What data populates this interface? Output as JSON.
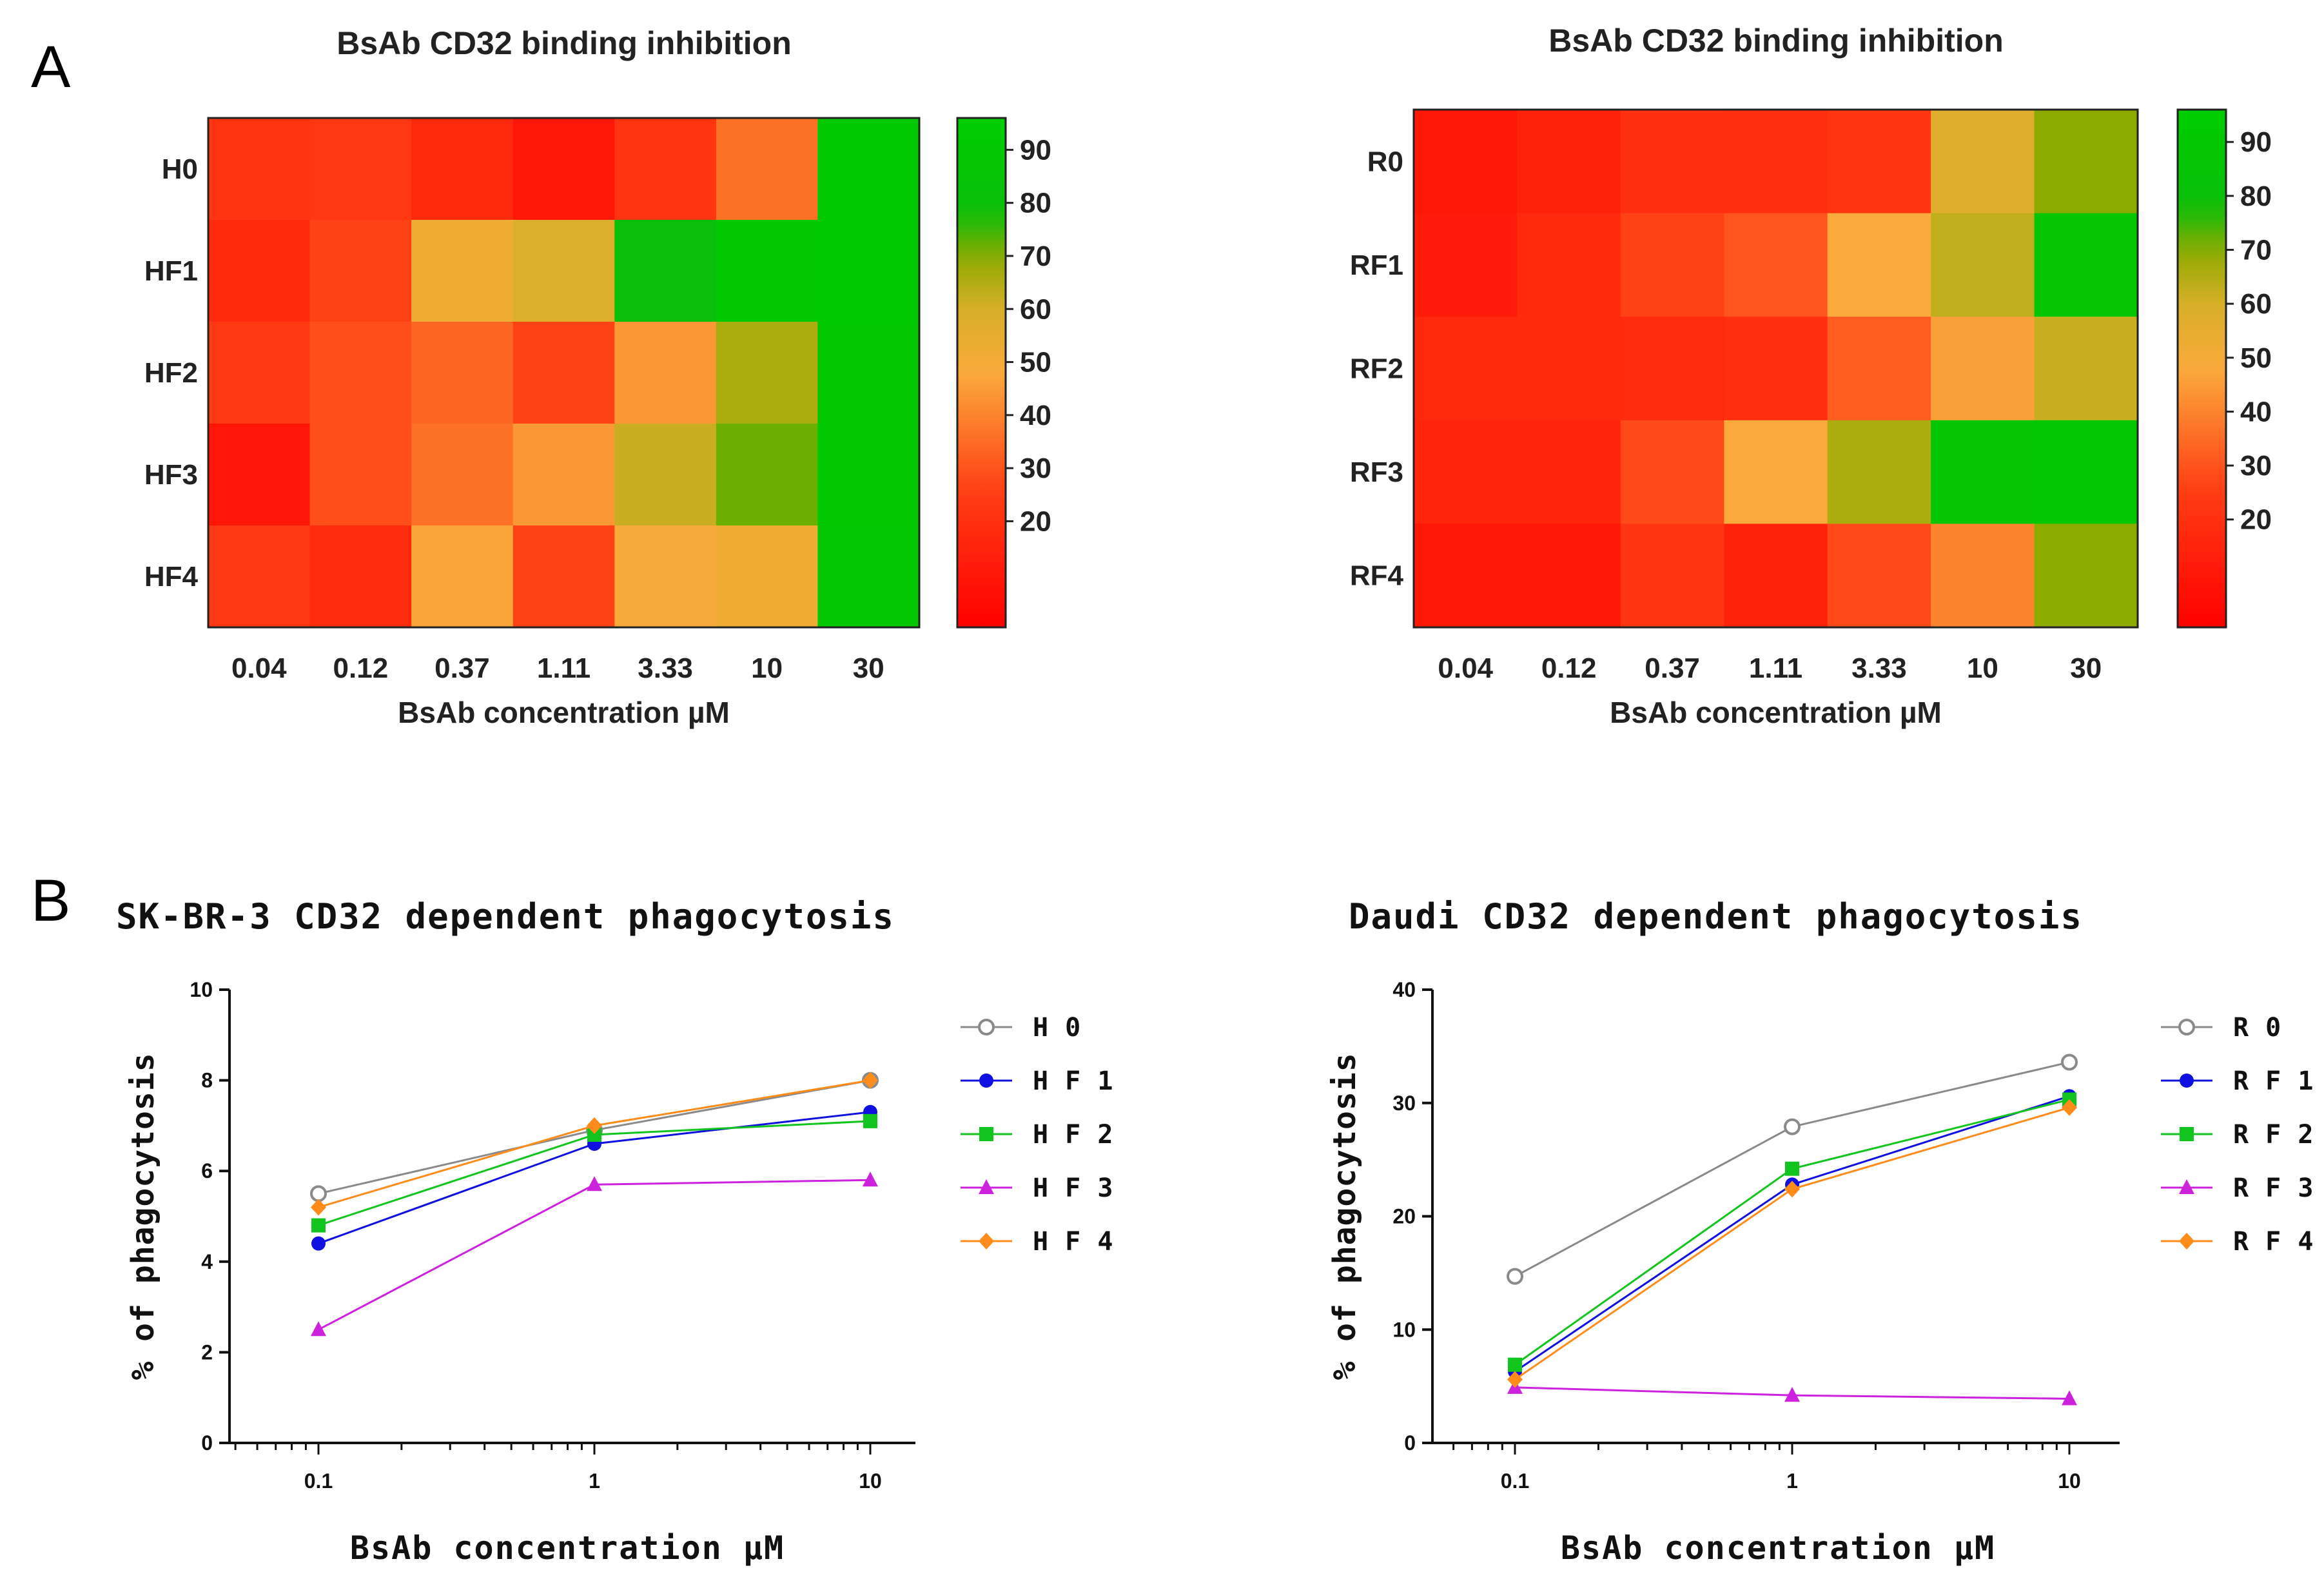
{
  "panels": {
    "a": "A",
    "b": "B"
  },
  "chart_data": [
    {
      "type": "heatmap",
      "title": "BsAb CD32 binding inhibition",
      "xlabel": "BsAb concentration µM",
      "categories": [
        "0.04",
        "0.12",
        "0.37",
        "1.11",
        "3.33",
        "10",
        "30"
      ],
      "rows": [
        "H0",
        "HF1",
        "HF2",
        "HF3",
        "HF4"
      ],
      "values": [
        [
          22,
          23,
          17,
          10,
          22,
          36,
          92
        ],
        [
          17,
          26,
          52,
          58,
          78,
          91,
          92
        ],
        [
          24,
          29,
          34,
          26,
          44,
          66,
          91
        ],
        [
          9,
          29,
          36,
          44,
          62,
          72,
          91
        ],
        [
          23,
          18,
          47,
          26,
          49,
          52,
          90
        ]
      ],
      "colorbar": {
        "range": [
          0,
          96
        ],
        "ticks": [
          "20",
          "30",
          "40",
          "50",
          "60",
          "70",
          "80",
          "90"
        ]
      }
    },
    {
      "type": "heatmap",
      "title": "BsAb CD32 binding inhibition",
      "xlabel": "BsAb concentration µM",
      "categories": [
        "0.04",
        "0.12",
        "0.37",
        "1.11",
        "3.33",
        "10",
        "30"
      ],
      "rows": [
        "R0",
        "RF1",
        "RF2",
        "RF3",
        "RF4"
      ],
      "values": [
        [
          10,
          14,
          20,
          19,
          22,
          57,
          70
        ],
        [
          12,
          17,
          26,
          30,
          48,
          63,
          88
        ],
        [
          17,
          17,
          18,
          19,
          32,
          46,
          62
        ],
        [
          16,
          15,
          28,
          48,
          66,
          88,
          89
        ],
        [
          10,
          10,
          22,
          14,
          28,
          40,
          70
        ]
      ],
      "colorbar": {
        "range": [
          0,
          96
        ],
        "ticks": [
          "20",
          "30",
          "40",
          "50",
          "60",
          "70",
          "80",
          "90"
        ]
      }
    },
    {
      "type": "line",
      "title": "SK-BR-3 CD32 dependent phagocytosis",
      "xlabel": "BsAb concentration µM",
      "ylabel": "% of phagocytosis",
      "x": [
        0.1,
        1,
        10
      ],
      "xscale": "log",
      "xticks": [
        "0.1",
        "1",
        "10"
      ],
      "yticks": [
        "0",
        "2",
        "4",
        "6",
        "8",
        "10"
      ],
      "ylim": [
        0,
        10
      ],
      "series": [
        {
          "name": "H0",
          "legend": "H 0",
          "values": [
            5.5,
            6.9,
            8.0
          ],
          "color": "#8a8a8a",
          "marker": "open-circle"
        },
        {
          "name": "HF1",
          "legend": "H F 1",
          "values": [
            4.4,
            6.6,
            7.3
          ],
          "color": "#1010e0",
          "marker": "circle"
        },
        {
          "name": "HF2",
          "legend": "H F 2",
          "values": [
            4.8,
            6.8,
            7.1
          ],
          "color": "#12c41e",
          "marker": "square"
        },
        {
          "name": "HF3",
          "legend": "H F 3",
          "values": [
            2.5,
            5.7,
            5.8
          ],
          "color": "#cc22dd",
          "marker": "triangle"
        },
        {
          "name": "HF4",
          "legend": "H F 4",
          "values": [
            5.2,
            7.0,
            8.0
          ],
          "color": "#ff8c1a",
          "marker": "diamond"
        }
      ],
      "legend": "right"
    },
    {
      "type": "line",
      "title": "Daudi CD32 dependent phagocytosis",
      "xlabel": "BsAb concentration µM",
      "ylabel": "% of phagocytosis",
      "x": [
        0.1,
        1,
        10
      ],
      "xscale": "log",
      "xticks": [
        "0.1",
        "1",
        "10"
      ],
      "yticks": [
        "0",
        "10",
        "20",
        "30",
        "40"
      ],
      "ylim": [
        0,
        40
      ],
      "series": [
        {
          "name": "R0",
          "legend": "R 0",
          "values": [
            14.7,
            27.9,
            33.6
          ],
          "color": "#8a8a8a",
          "marker": "open-circle"
        },
        {
          "name": "RF1",
          "legend": "R F 1",
          "values": [
            6.3,
            22.8,
            30.6
          ],
          "color": "#1010e0",
          "marker": "circle"
        },
        {
          "name": "RF2",
          "legend": "R F 2",
          "values": [
            6.9,
            24.2,
            30.3
          ],
          "color": "#12c41e",
          "marker": "square"
        },
        {
          "name": "RF3",
          "legend": "R F 3",
          "values": [
            4.9,
            4.2,
            3.9
          ],
          "color": "#cc22dd",
          "marker": "triangle"
        },
        {
          "name": "RF4",
          "legend": "R F 4",
          "values": [
            5.6,
            22.4,
            29.6
          ],
          "color": "#ff8c1a",
          "marker": "diamond"
        }
      ],
      "legend": "right"
    }
  ]
}
